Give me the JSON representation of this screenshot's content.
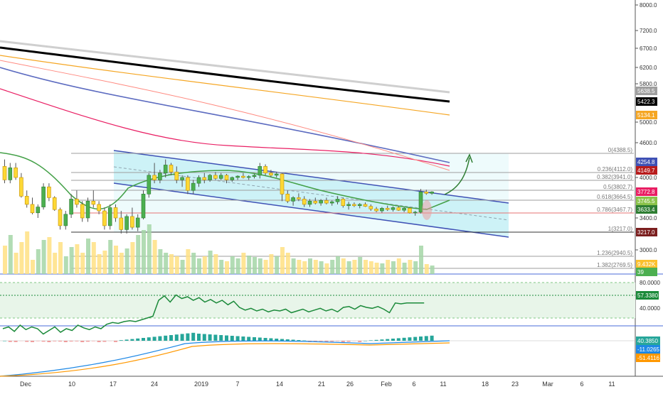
{
  "chart_data": {
    "type": "candlestick",
    "main_pane": {
      "y_ticks": [
        "8000.0",
        "7200.0",
        "6700.0",
        "6200.0",
        "5800.0",
        "5000.0",
        "4600.0",
        "4000.0",
        "3400.0",
        "3000.0"
      ],
      "price_tags": [
        {
          "text": "5638.5",
          "color": "#9e9e9e"
        },
        {
          "text": "5422.3",
          "color": "#000000"
        },
        {
          "text": "5134.1",
          "color": "#f5a623"
        },
        {
          "text": "4254.8",
          "color": "#3f51b5"
        },
        {
          "text": "4149.7",
          "color": "#b71c1c"
        },
        {
          "text": "3772.8",
          "color": "#e91e63"
        },
        {
          "text": "3745.5",
          "color": "#8bc34a"
        },
        {
          "text": "3633.4",
          "color": "#2e7d32"
        },
        {
          "text": "3217.0",
          "color": "#7b1e1e"
        },
        {
          "text": "9.432K",
          "color": "#fbc02d"
        },
        {
          "text": "39",
          "color": "#4caf50"
        }
      ],
      "fib_levels": [
        {
          "label": "0(4388.5)",
          "value": 4388.5
        },
        {
          "label": "0.236(4112.0)",
          "value": 4112.0
        },
        {
          "label": "0.382(3941.0)",
          "value": 3941.0
        },
        {
          "label": "0.5(3802.7)",
          "value": 3802.7
        },
        {
          "label": "0.618(3664.5)",
          "value": 3664.5
        },
        {
          "label": "0.786(3467.7)",
          "value": 3467.7
        },
        {
          "label": "1(3217.0)",
          "value": 3217.0
        },
        {
          "label": "1.236(2940.5)",
          "value": 2940.5
        },
        {
          "label": "1.382(2769.5)",
          "value": 2769.5
        }
      ],
      "ohlc": [
        [
          4200,
          4300,
          3900,
          3950
        ],
        [
          3950,
          4250,
          3900,
          4180
        ],
        [
          4180,
          4250,
          3950,
          4000
        ],
        [
          4000,
          4100,
          3700,
          3720
        ],
        [
          3720,
          3800,
          3550,
          3600
        ],
        [
          3600,
          3700,
          3450,
          3470
        ],
        [
          3470,
          3600,
          3400,
          3560
        ],
        [
          3560,
          3900,
          3520,
          3850
        ],
        [
          3850,
          3900,
          3650,
          3700
        ],
        [
          3700,
          3720,
          3500,
          3520
        ],
        [
          3520,
          3550,
          3250,
          3300
        ],
        [
          3300,
          3500,
          3250,
          3450
        ],
        [
          3450,
          3750,
          3400,
          3680
        ],
        [
          3680,
          3800,
          3550,
          3600
        ],
        [
          3600,
          3650,
          3350,
          3400
        ],
        [
          3400,
          3700,
          3350,
          3650
        ],
        [
          3650,
          3800,
          3550,
          3600
        ],
        [
          3600,
          3650,
          3450,
          3500
        ],
        [
          3500,
          3550,
          3250,
          3300
        ],
        [
          3300,
          3600,
          3250,
          3550
        ],
        [
          3550,
          3600,
          3350,
          3400
        ],
        [
          3400,
          3500,
          3200,
          3250
        ],
        [
          3250,
          3450,
          3200,
          3420
        ],
        [
          3420,
          3550,
          3250,
          3280
        ],
        [
          3280,
          3450,
          3230,
          3400
        ],
        [
          3400,
          3800,
          3380,
          3750
        ],
        [
          3750,
          4100,
          3700,
          4050
        ],
        [
          4050,
          4250,
          3900,
          3950
        ],
        [
          3950,
          4150,
          3900,
          4100
        ],
        [
          4100,
          4300,
          4000,
          4220
        ],
        [
          4220,
          4250,
          4050,
          4120
        ],
        [
          4120,
          4200,
          3900,
          3950
        ],
        [
          3950,
          4050,
          3850,
          4000
        ],
        [
          4000,
          4050,
          3750,
          3800
        ],
        [
          3800,
          3950,
          3750,
          3900
        ],
        [
          3900,
          4050,
          3850,
          4000
        ],
        [
          4000,
          4100,
          3900,
          3950
        ],
        [
          3950,
          4080,
          3920,
          4050
        ],
        [
          4050,
          4120,
          3950,
          3980
        ],
        [
          3980,
          4100,
          3950,
          4050
        ],
        [
          4050,
          4080,
          3900,
          3950
        ],
        [
          3950,
          4020,
          3920,
          4000
        ],
        [
          4000,
          4050,
          3950,
          4030
        ],
        [
          4030,
          4100,
          3980,
          4000
        ],
        [
          4000,
          4050,
          3950,
          4020
        ],
        [
          4020,
          4080,
          3980,
          4050
        ],
        [
          4050,
          4250,
          3980,
          4200
        ],
        [
          4200,
          4230,
          4050,
          4100
        ],
        [
          4100,
          4150,
          4000,
          4050
        ],
        [
          4050,
          4120,
          4000,
          4080
        ],
        [
          4080,
          4100,
          3650,
          3750
        ],
        [
          3750,
          3800,
          3620,
          3650
        ],
        [
          3650,
          3720,
          3580,
          3700
        ],
        [
          3700,
          3760,
          3650,
          3680
        ],
        [
          3680,
          3720,
          3560,
          3600
        ],
        [
          3600,
          3680,
          3560,
          3650
        ],
        [
          3650,
          3700,
          3600,
          3620
        ],
        [
          3620,
          3680,
          3580,
          3660
        ],
        [
          3660,
          3700,
          3600,
          3620
        ],
        [
          3620,
          3660,
          3580,
          3640
        ],
        [
          3640,
          3720,
          3600,
          3680
        ],
        [
          3680,
          3700,
          3550,
          3580
        ],
        [
          3580,
          3640,
          3520,
          3600
        ],
        [
          3600,
          3630,
          3560,
          3580
        ],
        [
          3580,
          3620,
          3540,
          3600
        ],
        [
          3600,
          3630,
          3560,
          3570
        ],
        [
          3570,
          3600,
          3500,
          3530
        ],
        [
          3530,
          3560,
          3480,
          3500
        ],
        [
          3500,
          3560,
          3470,
          3540
        ],
        [
          3540,
          3580,
          3500,
          3520
        ],
        [
          3520,
          3570,
          3490,
          3550
        ],
        [
          3550,
          3580,
          3500,
          3510
        ],
        [
          3510,
          3560,
          3480,
          3540
        ],
        [
          3540,
          3560,
          3460,
          3470
        ],
        [
          3470,
          3500,
          3430,
          3480
        ],
        [
          3480,
          3820,
          3460,
          3780
        ],
        [
          3780,
          3810,
          3740,
          3760
        ],
        [
          3760,
          3790,
          3740,
          3780
        ]
      ],
      "tick_labels_x": [
        "Dec",
        "10",
        "17",
        "24",
        "2019",
        "7",
        "14",
        "21",
        "26",
        "Feb",
        "6",
        "11",
        "18",
        "23",
        "Mar",
        "6",
        "11"
      ]
    },
    "rsi_pane": {
      "ticks": [
        "80.0000",
        "40.0000"
      ],
      "tag": {
        "text": "57.3380",
        "color": "#1b8a3a"
      },
      "values": [
        28,
        30,
        25,
        32,
        27,
        30,
        28,
        22,
        26,
        30,
        24,
        28,
        26,
        32,
        29,
        27,
        30,
        28,
        33,
        35,
        34,
        36,
        37,
        36,
        38,
        40,
        42,
        60,
        65,
        58,
        66,
        62,
        64,
        60,
        63,
        58,
        61,
        57,
        60,
        55,
        59,
        52,
        49,
        51,
        48,
        50,
        47,
        49,
        48,
        50,
        46,
        48,
        50,
        47,
        49,
        51,
        48,
        50,
        47,
        52,
        53,
        50,
        54,
        52,
        51,
        53,
        50,
        46,
        57,
        56,
        57,
        57,
        57,
        57
      ]
    },
    "macd_pane": {
      "tags": [
        {
          "text": "40.3850",
          "color": "#26a69a"
        },
        {
          "text": "-11.0265",
          "color": "#1e88e5"
        },
        {
          "text": "-51.4116",
          "color": "#ff9800"
        }
      ]
    }
  }
}
